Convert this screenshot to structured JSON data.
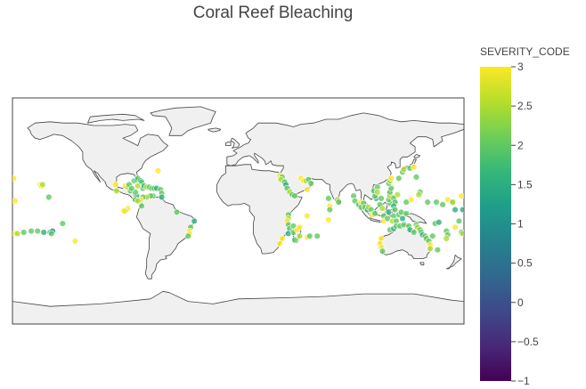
{
  "chart_data": {
    "type": "scatter",
    "subtype": "scatter-geo",
    "projection": "equirectangular",
    "title": "Coral Reef Bleaching",
    "lon_range": [
      -180,
      180
    ],
    "lat_range": [
      -90,
      90
    ],
    "land_color": "#f0f0f0",
    "coast_color": "#444444",
    "marker_opacity": 0.8,
    "colorscale": "Viridis",
    "colorscale_stops": [
      "#440154",
      "#482878",
      "#3e4989",
      "#31688e",
      "#26828e",
      "#1f9e89",
      "#35b779",
      "#6ece58",
      "#b5de2b",
      "#fde725"
    ],
    "colorbar": {
      "title": "SEVERITY_CODE",
      "cmin": -1,
      "cmax": 3,
      "ticks": [
        3,
        2.5,
        2,
        1.5,
        1,
        0.5,
        0,
        -0.5,
        -1
      ],
      "tick_labels": [
        "3",
        "2.5",
        "2",
        "1.5",
        "1",
        "0.5",
        "0",
        "−0.5",
        "−1"
      ],
      "placement": "right"
    },
    "points": [
      {
        "lon": -179,
        "lat": 26,
        "sev": 3
      },
      {
        "lon": -158,
        "lat": 21,
        "sev": 3
      },
      {
        "lon": -157,
        "lat": 20,
        "sev": 3
      },
      {
        "lon": -156,
        "lat": 21,
        "sev": 2.5
      },
      {
        "lon": -151,
        "lat": 11,
        "sev": 2
      },
      {
        "lon": -178,
        "lat": 8,
        "sev": 3
      },
      {
        "lon": -178,
        "lat": -18,
        "sev": 3
      },
      {
        "lon": -176,
        "lat": -18,
        "sev": 2.5
      },
      {
        "lon": -171,
        "lat": -17,
        "sev": 2
      },
      {
        "lon": -165,
        "lat": -16,
        "sev": 2
      },
      {
        "lon": -160,
        "lat": -16,
        "sev": 2
      },
      {
        "lon": -155,
        "lat": -17,
        "sev": 1.5
      },
      {
        "lon": -150,
        "lat": -17,
        "sev": 1.5
      },
      {
        "lon": -148,
        "lat": -16,
        "sev": 1
      },
      {
        "lon": -149,
        "lat": -18,
        "sev": 2
      },
      {
        "lon": -140,
        "lat": -10,
        "sev": 2
      },
      {
        "lon": -130,
        "lat": -24,
        "sev": 3
      },
      {
        "lon": -98,
        "lat": 21,
        "sev": 3
      },
      {
        "lon": -97,
        "lat": 16,
        "sev": 2.5
      },
      {
        "lon": -90,
        "lat": 20,
        "sev": 3
      },
      {
        "lon": -88,
        "lat": 19,
        "sev": 2.5
      },
      {
        "lon": -87,
        "lat": 21,
        "sev": 2
      },
      {
        "lon": -86,
        "lat": 16,
        "sev": 2
      },
      {
        "lon": -83,
        "lat": 24,
        "sev": 2
      },
      {
        "lon": -81,
        "lat": 25,
        "sev": 1.5
      },
      {
        "lon": -80,
        "lat": 26,
        "sev": 2
      },
      {
        "lon": -78,
        "lat": 24,
        "sev": 1.5
      },
      {
        "lon": -77,
        "lat": 23,
        "sev": 2
      },
      {
        "lon": -76,
        "lat": 18,
        "sev": 2
      },
      {
        "lon": -75,
        "lat": 20,
        "sev": 1.5
      },
      {
        "lon": -73,
        "lat": 19,
        "sev": 2.5
      },
      {
        "lon": -71,
        "lat": 19,
        "sev": 2
      },
      {
        "lon": -69,
        "lat": 18,
        "sev": 2
      },
      {
        "lon": -67,
        "lat": 18,
        "sev": 2
      },
      {
        "lon": -65,
        "lat": 18,
        "sev": 1.5
      },
      {
        "lon": -64,
        "lat": 32,
        "sev": 3
      },
      {
        "lon": -62,
        "lat": 17,
        "sev": 2
      },
      {
        "lon": -61,
        "lat": 14,
        "sev": 2
      },
      {
        "lon": -61,
        "lat": 11,
        "sev": 1.5
      },
      {
        "lon": -68,
        "lat": 12,
        "sev": 2
      },
      {
        "lon": -70,
        "lat": 12,
        "sev": 2
      },
      {
        "lon": -73,
        "lat": 11,
        "sev": 2.5
      },
      {
        "lon": -76,
        "lat": 11,
        "sev": 2
      },
      {
        "lon": -78,
        "lat": 9,
        "sev": 3
      },
      {
        "lon": -81,
        "lat": 12,
        "sev": 1.5
      },
      {
        "lon": -82,
        "lat": 15,
        "sev": 2
      },
      {
        "lon": -80,
        "lat": 20,
        "sev": 2.5
      },
      {
        "lon": -85,
        "lat": 18,
        "sev": 2
      },
      {
        "lon": -82,
        "lat": 9,
        "sev": 2
      },
      {
        "lon": -80,
        "lat": 8,
        "sev": 2.5
      },
      {
        "lon": -88,
        "lat": 2,
        "sev": 3
      },
      {
        "lon": -90,
        "lat": 0,
        "sev": 2.5
      },
      {
        "lon": -91,
        "lat": 0,
        "sev": 3
      },
      {
        "lon": -77,
        "lat": 4,
        "sev": 2
      },
      {
        "lon": -49,
        "lat": -1,
        "sev": 2
      },
      {
        "lon": -38,
        "lat": -13,
        "sev": 2
      },
      {
        "lon": -39,
        "lat": -16,
        "sev": 3
      },
      {
        "lon": -39,
        "lat": -18,
        "sev": 3
      },
      {
        "lon": -40,
        "lat": -20,
        "sev": 2
      },
      {
        "lon": -35,
        "lat": -8,
        "sev": 1.5
      },
      {
        "lon": 33,
        "lat": 28,
        "sev": 3
      },
      {
        "lon": 35,
        "lat": 27,
        "sev": 2
      },
      {
        "lon": 34,
        "lat": 25,
        "sev": 2.5
      },
      {
        "lon": 37,
        "lat": 23,
        "sev": 2
      },
      {
        "lon": 38,
        "lat": 21,
        "sev": 1.5
      },
      {
        "lon": 39,
        "lat": 18,
        "sev": 2
      },
      {
        "lon": 41,
        "lat": 15,
        "sev": 2.5
      },
      {
        "lon": 43,
        "lat": 13,
        "sev": 2
      },
      {
        "lon": 45,
        "lat": 12,
        "sev": 2
      },
      {
        "lon": 50,
        "lat": 26,
        "sev": 3
      },
      {
        "lon": 52,
        "lat": 24,
        "sev": 3
      },
      {
        "lon": 54,
        "lat": 24,
        "sev": 2.5
      },
      {
        "lon": 56,
        "lat": 25,
        "sev": 2
      },
      {
        "lon": 58,
        "lat": 22,
        "sev": 2
      },
      {
        "lon": 55,
        "lat": 17,
        "sev": 3
      },
      {
        "lon": 40,
        "lat": -3,
        "sev": 2
      },
      {
        "lon": 40,
        "lat": -6,
        "sev": 2.5
      },
      {
        "lon": 39,
        "lat": -8,
        "sev": 3
      },
      {
        "lon": 40,
        "lat": -11,
        "sev": 2
      },
      {
        "lon": 41,
        "lat": -14,
        "sev": 2
      },
      {
        "lon": 40,
        "lat": -18,
        "sev": 1.5
      },
      {
        "lon": 35,
        "lat": -22,
        "sev": 3
      },
      {
        "lon": 33,
        "lat": -26,
        "sev": 3
      },
      {
        "lon": 44,
        "lat": -12,
        "sev": 2
      },
      {
        "lon": 44,
        "lat": -17,
        "sev": 2
      },
      {
        "lon": 47,
        "lat": -15,
        "sev": 3
      },
      {
        "lon": 49,
        "lat": -13,
        "sev": 3
      },
      {
        "lon": 45,
        "lat": -23,
        "sev": 2
      },
      {
        "lon": 49,
        "lat": -20,
        "sev": 2.5
      },
      {
        "lon": 55,
        "lat": -4,
        "sev": 3
      },
      {
        "lon": 55,
        "lat": -21,
        "sev": 3
      },
      {
        "lon": 57,
        "lat": -20,
        "sev": 2
      },
      {
        "lon": 63,
        "lat": -20,
        "sev": 2
      },
      {
        "lon": 73,
        "lat": 4,
        "sev": 3
      },
      {
        "lon": 73,
        "lat": 1,
        "sev": 2
      },
      {
        "lon": 72,
        "lat": 10,
        "sev": 2
      },
      {
        "lon": 72,
        "lat": -7,
        "sev": 3
      },
      {
        "lon": 79,
        "lat": 9,
        "sev": 2.5
      },
      {
        "lon": 80,
        "lat": 7,
        "sev": 2
      },
      {
        "lon": 92,
        "lat": 12,
        "sev": 2
      },
      {
        "lon": 93,
        "lat": 8,
        "sev": 2
      },
      {
        "lon": 96,
        "lat": 5,
        "sev": 2
      },
      {
        "lon": 98,
        "lat": 7,
        "sev": 3
      },
      {
        "lon": 98,
        "lat": 3,
        "sev": 2
      },
      {
        "lon": 100,
        "lat": 6,
        "sev": 2
      },
      {
        "lon": 101,
        "lat": 3,
        "sev": 2
      },
      {
        "lon": 103,
        "lat": 1,
        "sev": 1.5
      },
      {
        "lon": 104,
        "lat": 3,
        "sev": 2.5
      },
      {
        "lon": 106,
        "lat": 1,
        "sev": 2
      },
      {
        "lon": 107,
        "lat": -3,
        "sev": 3
      },
      {
        "lon": 109,
        "lat": -2,
        "sev": 2
      },
      {
        "lon": 110,
        "lat": 10,
        "sev": 1.5
      },
      {
        "lon": 109,
        "lat": 12,
        "sev": 2
      },
      {
        "lon": 108,
        "lat": 16,
        "sev": 2
      },
      {
        "lon": 111,
        "lat": 19,
        "sev": 2
      },
      {
        "lon": 111,
        "lat": 15,
        "sev": 2.5
      },
      {
        "lon": 114,
        "lat": 10,
        "sev": 2
      },
      {
        "lon": 113,
        "lat": 5,
        "sev": 2
      },
      {
        "lon": 115,
        "lat": 2,
        "sev": 2.5
      },
      {
        "lon": 116,
        "lat": -4,
        "sev": 2
      },
      {
        "lon": 116,
        "lat": -8,
        "sev": 3
      },
      {
        "lon": 119,
        "lat": -6,
        "sev": 2
      },
      {
        "lon": 120,
        "lat": -1,
        "sev": 1.5
      },
      {
        "lon": 121,
        "lat": 6,
        "sev": 2
      },
      {
        "lon": 120,
        "lat": 9,
        "sev": 2
      },
      {
        "lon": 121,
        "lat": 12,
        "sev": 2.5
      },
      {
        "lon": 121,
        "lat": 15,
        "sev": 2
      },
      {
        "lon": 122,
        "lat": 18,
        "sev": 2
      },
      {
        "lon": 120,
        "lat": 22,
        "sev": 2
      },
      {
        "lon": 121,
        "lat": 24,
        "sev": 2.5
      },
      {
        "lon": 122,
        "lat": 26,
        "sev": 3
      },
      {
        "lon": 124,
        "lat": 10,
        "sev": 2
      },
      {
        "lon": 125,
        "lat": 7,
        "sev": 2
      },
      {
        "lon": 124,
        "lat": 4,
        "sev": 1.5
      },
      {
        "lon": 125,
        "lat": 1,
        "sev": 2
      },
      {
        "lon": 124,
        "lat": -4,
        "sev": 2
      },
      {
        "lon": 123,
        "lat": -8,
        "sev": 2.5
      },
      {
        "lon": 126,
        "lat": -8,
        "sev": 2
      },
      {
        "lon": 128,
        "lat": -3,
        "sev": 2
      },
      {
        "lon": 130,
        "lat": -1,
        "sev": 2
      },
      {
        "lon": 131,
        "lat": -6,
        "sev": 1.5
      },
      {
        "lon": 134,
        "lat": -2,
        "sev": 2
      },
      {
        "lon": 134,
        "lat": 7,
        "sev": 2
      },
      {
        "lon": 127,
        "lat": 13,
        "sev": 2.5
      },
      {
        "lon": 128,
        "lat": 26,
        "sev": 2
      },
      {
        "lon": 131,
        "lat": 31,
        "sev": 2
      },
      {
        "lon": 132,
        "lat": 33,
        "sev": 2.5
      },
      {
        "lon": 137,
        "lat": 34,
        "sev": 2
      },
      {
        "lon": 140,
        "lat": 35,
        "sev": 3
      },
      {
        "lon": 142,
        "lat": 27,
        "sev": 2
      },
      {
        "lon": 145,
        "lat": 15,
        "sev": 2
      },
      {
        "lon": 144,
        "lat": 13,
        "sev": 2.5
      },
      {
        "lon": 138,
        "lat": 9,
        "sev": 3
      },
      {
        "lon": 151,
        "lat": 7,
        "sev": 2
      },
      {
        "lon": 158,
        "lat": 7,
        "sev": 2
      },
      {
        "lon": 163,
        "lat": 5,
        "sev": 2
      },
      {
        "lon": 167,
        "lat": 9,
        "sev": 3
      },
      {
        "lon": 171,
        "lat": 7,
        "sev": 2
      },
      {
        "lon": 173,
        "lat": 1,
        "sev": 1.5
      },
      {
        "lon": 114,
        "lat": -22,
        "sev": 3
      },
      {
        "lon": 113,
        "lat": -26,
        "sev": 3
      },
      {
        "lon": 114,
        "lat": -29,
        "sev": 3
      },
      {
        "lon": 115,
        "lat": -32,
        "sev": 2
      },
      {
        "lon": 121,
        "lat": -15,
        "sev": 2
      },
      {
        "lon": 124,
        "lat": -14,
        "sev": 1.5
      },
      {
        "lon": 126,
        "lat": -12,
        "sev": 2
      },
      {
        "lon": 129,
        "lat": -12,
        "sev": 2
      },
      {
        "lon": 132,
        "lat": -11,
        "sev": 2
      },
      {
        "lon": 136,
        "lat": -12,
        "sev": 2
      },
      {
        "lon": 137,
        "lat": -15,
        "sev": 1.5
      },
      {
        "lon": 140,
        "lat": -17,
        "sev": 2
      },
      {
        "lon": 142,
        "lat": -11,
        "sev": 2
      },
      {
        "lon": 143,
        "lat": -13,
        "sev": 2.5
      },
      {
        "lon": 145,
        "lat": -15,
        "sev": 2
      },
      {
        "lon": 146,
        "lat": -17,
        "sev": 2
      },
      {
        "lon": 147,
        "lat": -19,
        "sev": 1.5
      },
      {
        "lon": 149,
        "lat": -20,
        "sev": 2
      },
      {
        "lon": 150,
        "lat": -22,
        "sev": 2
      },
      {
        "lon": 152,
        "lat": -24,
        "sev": 2
      },
      {
        "lon": 153,
        "lat": -27,
        "sev": 3
      },
      {
        "lon": 153,
        "lat": -30,
        "sev": 2.5
      },
      {
        "lon": 155,
        "lat": -20,
        "sev": 2
      },
      {
        "lon": 157,
        "lat": -10,
        "sev": 2
      },
      {
        "lon": 160,
        "lat": -9,
        "sev": 1.5
      },
      {
        "lon": 166,
        "lat": -16,
        "sev": 2
      },
      {
        "lon": 167,
        "lat": -19,
        "sev": 2
      },
      {
        "lon": 166,
        "lat": -22,
        "sev": 2.5
      },
      {
        "lon": 159,
        "lat": -31,
        "sev": 2
      },
      {
        "lon": 178,
        "lat": -17,
        "sev": 2
      },
      {
        "lon": 179,
        "lat": -18,
        "sev": 2.5
      },
      {
        "lon": 173,
        "lat": -13,
        "sev": 3
      },
      {
        "lon": 176,
        "lat": -8,
        "sev": 2
      },
      {
        "lon": 171,
        "lat": 7,
        "sev": 2.5
      },
      {
        "lon": 178,
        "lat": 12,
        "sev": 3
      },
      {
        "lon": 179,
        "lat": 1,
        "sev": 1.5
      }
    ]
  }
}
